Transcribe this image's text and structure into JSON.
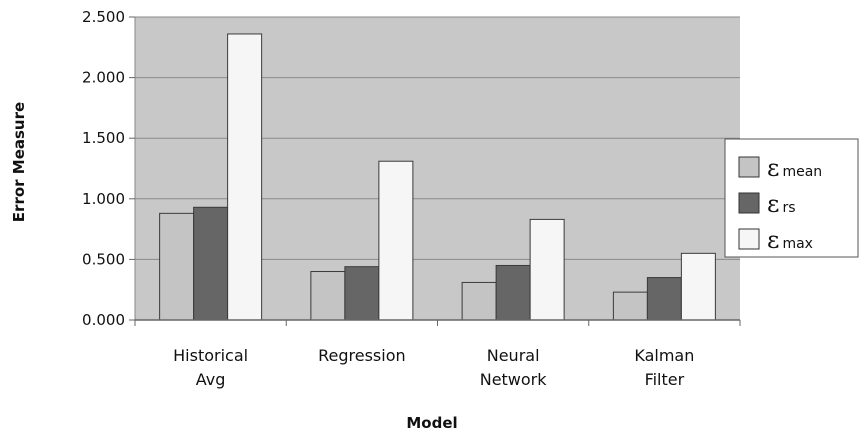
{
  "chart_data": {
    "type": "bar",
    "categories": [
      [
        "Historical",
        "Avg"
      ],
      [
        "Regression"
      ],
      [
        "Neural",
        "Network"
      ],
      [
        "Kalman",
        "Filter"
      ]
    ],
    "series": [
      {
        "symbol": "ε",
        "subscript": "mean",
        "color": "#c4c4c4",
        "values": [
          0.88,
          0.4,
          0.31,
          0.23
        ]
      },
      {
        "symbol": "ε",
        "subscript": "rs",
        "color": "#666666",
        "values": [
          0.93,
          0.44,
          0.45,
          0.35
        ]
      },
      {
        "symbol": "ε",
        "subscript": "max",
        "color": "#f6f6f6",
        "values": [
          2.36,
          1.31,
          0.83,
          0.55
        ]
      }
    ],
    "ylim": [
      0,
      2.5
    ],
    "yticks": [
      0,
      0.5,
      1.0,
      1.5,
      2.0,
      2.5
    ],
    "ytick_labels": [
      "0.000",
      "0.500",
      "1.000",
      "1.500",
      "2.000",
      "2.500"
    ],
    "xlabel": "Model",
    "ylabel": "Error Measure",
    "grid": true,
    "legend_position": "right",
    "plot_background": "#c8c8c8"
  }
}
